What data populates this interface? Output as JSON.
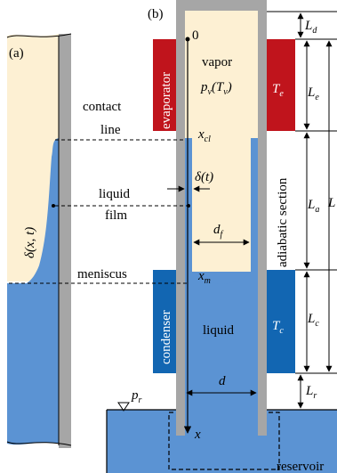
{
  "panels": {
    "a": "(a)",
    "b": "(b)"
  },
  "colors": {
    "vapor": "#fdf0d3",
    "liquid": "#5b93d3",
    "wall": "#a6a6a6",
    "evaporator": "#c0141c",
    "condenser": "#1266b2"
  },
  "labels": {
    "origin": "0",
    "vapor": "vapor",
    "pv_main": "p",
    "pv_sub": "v",
    "pv_arg_open": "(T",
    "pv_arg_sub": "v",
    "pv_arg_close": ")",
    "evaporator": "evaporator",
    "condenser": "condenser",
    "contact_line_1": "contact",
    "contact_line_2": "line",
    "liquid_film_1": "liquid",
    "liquid_film_2": "film",
    "meniscus": "meniscus",
    "liquid": "liquid",
    "adiabatic": "adiabatic section",
    "reservoir": "reservoir",
    "x_axis": "x",
    "delta_xt": "δ(x, t)",
    "delta_t": "δ(t)",
    "xcl_main": "x",
    "xcl_sub": "cl",
    "xm_main": "x",
    "xm_sub": "m",
    "df_main": "d",
    "df_sub": "f",
    "d": "d",
    "pr_main": "p",
    "pr_sub": "r",
    "Te_main": "T",
    "Te_sub": "e",
    "Tc_main": "T",
    "Tc_sub": "c",
    "Ld_main": "L",
    "Ld_sub": "d",
    "Le_main": "L",
    "Le_sub": "e",
    "L": "L",
    "La_main": "L",
    "La_sub": "a",
    "Lc_main": "L",
    "Lc_sub": "c",
    "Lr_main": "L",
    "Lr_sub": "r"
  }
}
